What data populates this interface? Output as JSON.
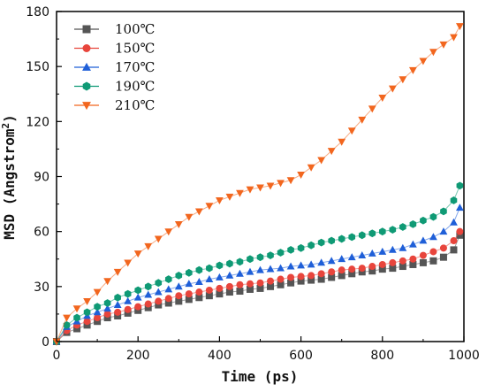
{
  "chart_data": {
    "type": "scatter",
    "xlabel": "Time (ps)",
    "ylabel_base": "MSD (Angstrom",
    "ylabel_sup": "2",
    "ylabel_end": ")",
    "xlim": [
      0,
      1000
    ],
    "ylim": [
      0,
      180
    ],
    "xticks": [
      0,
      200,
      400,
      600,
      800,
      1000
    ],
    "yticks": [
      0,
      30,
      60,
      90,
      120,
      150,
      180
    ],
    "grid": false,
    "legend_position": "top-left",
    "x": [
      0,
      25,
      50,
      75,
      100,
      125,
      150,
      175,
      200,
      225,
      250,
      275,
      300,
      325,
      350,
      375,
      400,
      425,
      450,
      475,
      500,
      525,
      550,
      575,
      600,
      625,
      650,
      675,
      700,
      725,
      750,
      775,
      800,
      825,
      850,
      875,
      900,
      925,
      950,
      975,
      990
    ],
    "series": [
      {
        "name": "100℃",
        "color": "#555555",
        "marker": "square",
        "values": [
          0,
          5,
          7,
          9,
          11,
          13,
          14,
          15.5,
          17,
          18.5,
          20,
          21,
          22,
          23,
          24,
          25,
          26,
          27,
          27.5,
          28.5,
          29,
          30,
          31,
          32,
          33,
          33.5,
          34,
          35,
          36,
          37,
          38,
          38.5,
          39.5,
          40,
          41,
          42,
          43,
          44,
          46,
          50,
          58
        ]
      },
      {
        "name": "150℃",
        "color": "#e8453c",
        "marker": "circle",
        "values": [
          0,
          6,
          9,
          11,
          13,
          15,
          16,
          17.5,
          19,
          20.5,
          22,
          23.5,
          25,
          26,
          27,
          28,
          29,
          30,
          31,
          31.5,
          32,
          33,
          34,
          35,
          35.5,
          36,
          37,
          38,
          39,
          39.5,
          40,
          41,
          42,
          43,
          44,
          45,
          47,
          49,
          51,
          55,
          60
        ]
      },
      {
        "name": "170℃",
        "color": "#1f5fd8",
        "marker": "triangle-up",
        "values": [
          0,
          8,
          11,
          14,
          16,
          18,
          20,
          22,
          24,
          25.5,
          27,
          28.5,
          30,
          31.5,
          32.5,
          34,
          35,
          36,
          37,
          38,
          39,
          39.5,
          40,
          41,
          41.5,
          42,
          43,
          44,
          45,
          46,
          47,
          48,
          49,
          50,
          51,
          53,
          55,
          57,
          60,
          65,
          73
        ]
      },
      {
        "name": "190℃",
        "color": "#0f9a75",
        "marker": "hexagon",
        "values": [
          0,
          9,
          13,
          16,
          19,
          21,
          24,
          26,
          28,
          30,
          32,
          34,
          36,
          37.5,
          39,
          40,
          41.5,
          42.5,
          43.5,
          45,
          46,
          47,
          48.5,
          50,
          51,
          52.5,
          54,
          55,
          56,
          57,
          58,
          59,
          60,
          61,
          62.5,
          64,
          66,
          68,
          71,
          77,
          85
        ]
      },
      {
        "name": "210℃",
        "color": "#f2661e",
        "marker": "triangle-down",
        "values": [
          0,
          13,
          18,
          22,
          27,
          33,
          38,
          43,
          48,
          52,
          56,
          60,
          64,
          68,
          71,
          74,
          77,
          79,
          81,
          83,
          84,
          85,
          86.5,
          88,
          91,
          95,
          99,
          104,
          109,
          115,
          121,
          127,
          133,
          138,
          143,
          148,
          153,
          158,
          162,
          166,
          172
        ]
      }
    ]
  }
}
